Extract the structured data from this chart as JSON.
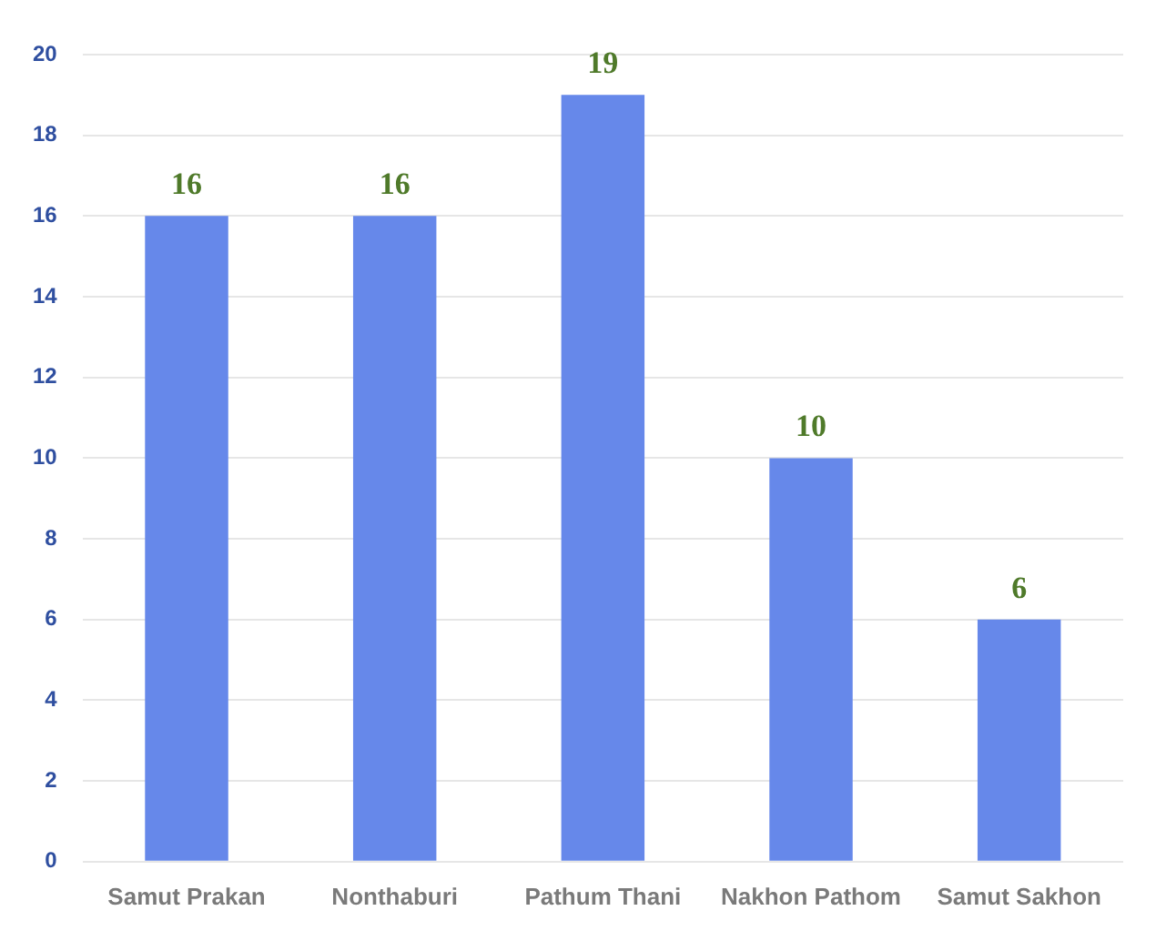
{
  "chart_data": {
    "type": "bar",
    "categories": [
      "Samut Prakan",
      "Nonthaburi",
      "Pathum Thani",
      "Nakhon Pathom",
      "Samut Sakhon"
    ],
    "values": [
      16,
      16,
      19,
      10,
      6
    ],
    "color": "#6688ea",
    "ylim": [
      0,
      20
    ],
    "yticks": [
      0,
      2,
      4,
      6,
      8,
      10,
      12,
      14,
      16,
      18,
      20
    ],
    "grid": "y",
    "data_labels": true
  }
}
